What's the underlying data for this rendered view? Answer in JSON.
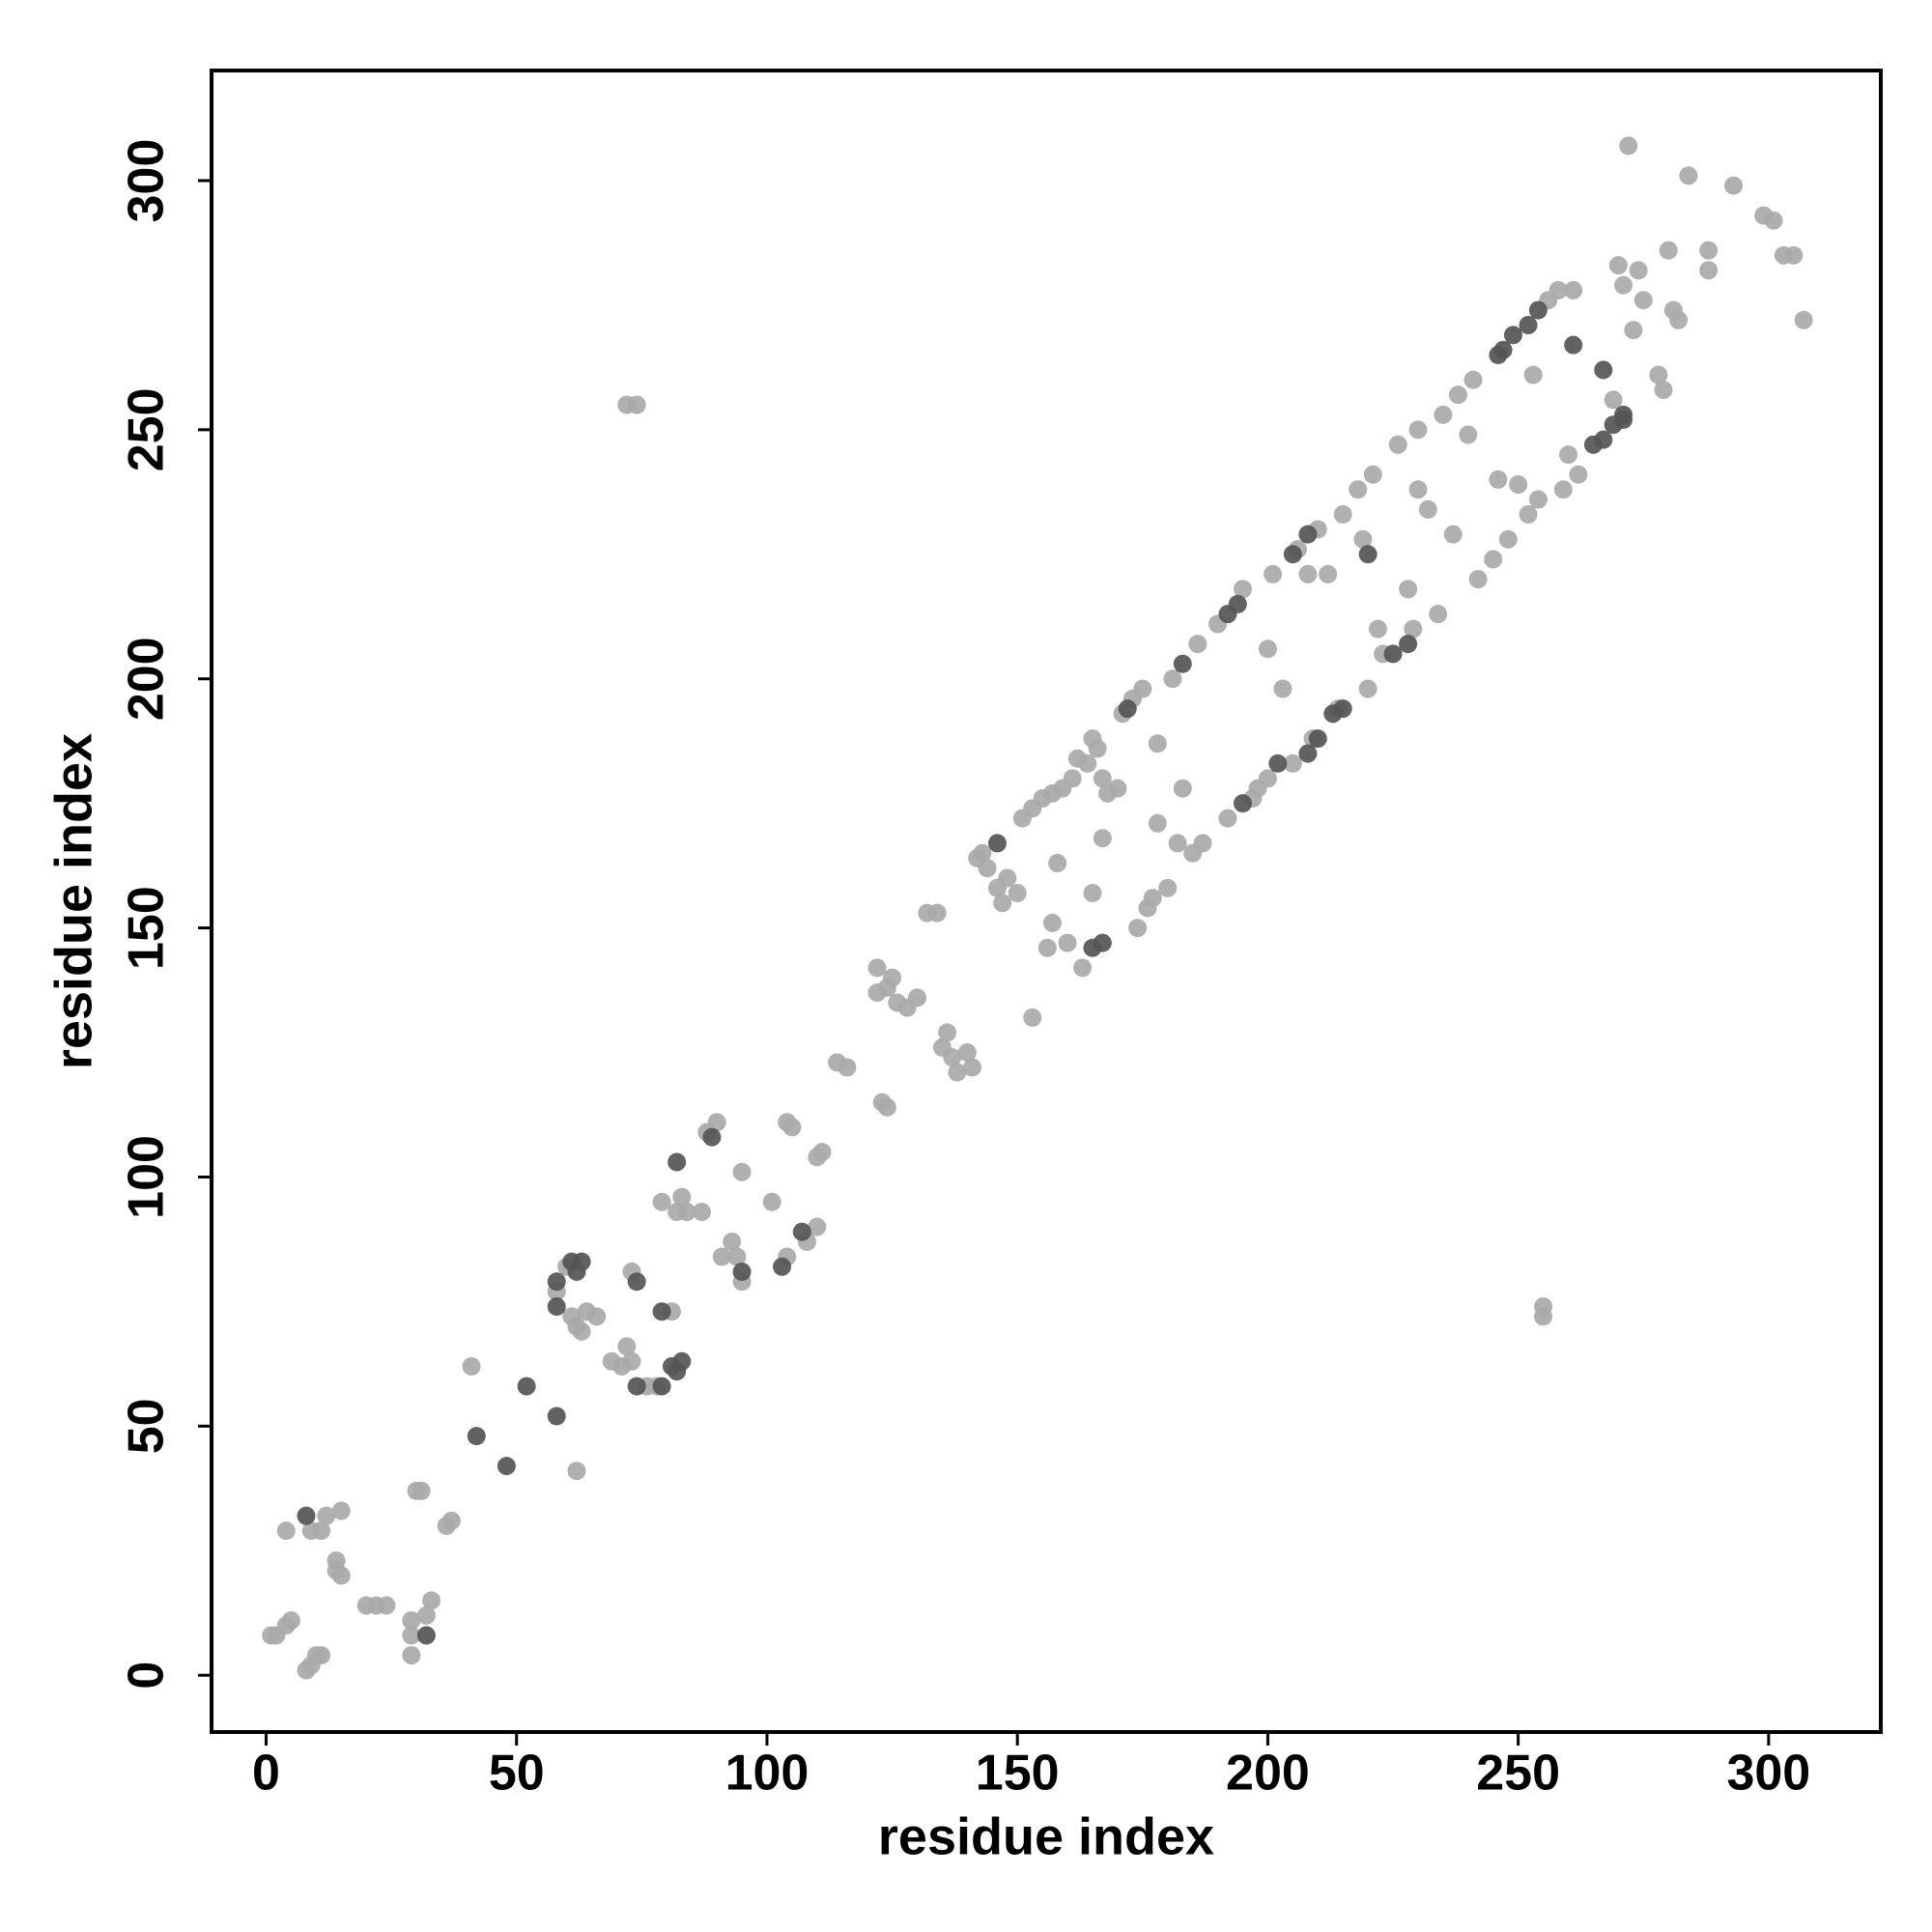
{
  "chart_data": {
    "type": "scatter",
    "xlabel": "residue index",
    "ylabel": "residue index",
    "xlim": [
      -10.9,
      322.4
    ],
    "ylim": [
      -11.4,
      322.1
    ],
    "xticks": [
      0,
      50,
      100,
      150,
      200,
      250,
      300
    ],
    "yticks": [
      0,
      50,
      100,
      150,
      200,
      250,
      300
    ],
    "series": [
      {
        "color": "#a9a9a9",
        "x": [
          1,
          2,
          4,
          5,
          4,
          8,
          9,
          10,
          11,
          9,
          11,
          12,
          15,
          14,
          14,
          15,
          20,
          22,
          24,
          29,
          29,
          29,
          30,
          31,
          32,
          33,
          36,
          37,
          41,
          62,
          58,
          60,
          61,
          62,
          63,
          64,
          66,
          69,
          71,
          72,
          73,
          73,
          76,
          78,
          81,
          79,
          82,
          83,
          84,
          87,
          88,
          90,
          91,
          93,
          94,
          95,
          95,
          101,
          104,
          104,
          105,
          108,
          110,
          110,
          111,
          114,
          116,
          122,
          122,
          123,
          124,
          124,
          125,
          126,
          128,
          130,
          132,
          134,
          135,
          136,
          137,
          138,
          140,
          141,
          142,
          143,
          144,
          146,
          147,
          148,
          150,
          151,
          153,
          153,
          155,
          156,
          157,
          157,
          158,
          159,
          160,
          161,
          162,
          163,
          164,
          165,
          166,
          167,
          168,
          170,
          171,
          173,
          174,
          175,
          176,
          177,
          178,
          178,
          180,
          181,
          182,
          183,
          185,
          186,
          187,
          190,
          192,
          195,
          197,
          198,
          200,
          200,
          201,
          203,
          205,
          206,
          208,
          209,
          210,
          212,
          214,
          215,
          218,
          219,
          220,
          221,
          222,
          223,
          226,
          228,
          229,
          230,
          230,
          232,
          235,
          234,
          238,
          237,
          240,
          241,
          242,
          245,
          246,
          248,
          250,
          252,
          253,
          254,
          256,
          258,
          259,
          260,
          261,
          262,
          269,
          270,
          271,
          273,
          274,
          275,
          278,
          279,
          280,
          281,
          282,
          284,
          288,
          288,
          293,
          299,
          301,
          303,
          305,
          307,
          272,
          72,
          74,
          255,
          255,
          165,
          167
        ],
        "y": [
          8,
          8,
          10,
          11,
          29,
          1,
          2,
          4,
          4,
          29,
          29,
          32,
          33,
          23,
          21,
          20,
          14,
          14,
          14,
          4,
          8,
          11,
          37,
          37,
          12,
          15,
          30,
          31,
          62,
          41,
          77,
          82,
          72,
          70,
          69,
          73,
          72,
          63,
          62,
          66,
          63,
          81,
          58,
          58,
          73,
          95,
          93,
          96,
          93,
          93,
          109,
          111,
          84,
          87,
          84,
          79,
          101,
          95,
          84,
          111,
          110,
          87,
          90,
          104,
          105,
          123,
          122,
          137,
          142,
          115,
          138,
          114,
          140,
          135,
          134,
          136,
          153,
          153,
          126,
          129,
          124,
          121,
          125,
          122,
          164,
          165,
          162,
          158,
          155,
          160,
          157,
          172,
          132,
          174,
          176,
          146,
          151,
          177,
          163,
          178,
          147,
          180,
          184,
          142,
          183,
          157,
          186,
          180,
          177,
          178,
          193,
          196,
          150,
          198,
          154,
          156,
          187,
          171,
          158,
          200,
          167,
          178,
          165,
          207,
          167,
          211,
          172,
          218,
          176,
          178,
          206,
          180,
          221,
          198,
          183,
          226,
          221,
          188,
          230,
          221,
          194,
          233,
          238,
          228,
          198,
          241,
          210,
          205,
          247,
          218,
          210,
          250,
          238,
          234,
          253,
          213,
          257,
          229,
          249,
          260,
          220,
          224,
          240,
          228,
          239,
          233,
          261,
          236,
          276,
          278,
          238,
          245,
          278,
          241,
          256,
          283,
          279,
          270,
          282,
          276,
          261,
          258,
          286,
          274,
          272,
          301,
          282,
          286,
          299,
          293,
          292,
          285,
          285,
          272,
          307,
          255,
          255,
          72,
          74,
          188,
          168
        ]
      },
      {
        "color": "#555555",
        "x": [
          8,
          32,
          42,
          48,
          52,
          58,
          58,
          58,
          61,
          62,
          63,
          74,
          74,
          79,
          79,
          81,
          82,
          83,
          82,
          89,
          95,
          103,
          107,
          146,
          165,
          167,
          172,
          183,
          192,
          194,
          195,
          202,
          205,
          208,
          208,
          213,
          215,
          220,
          225,
          228,
          247,
          249,
          252,
          254,
          261,
          265,
          267,
          269,
          271,
          267,
          271,
          246,
          210
        ],
        "y": [
          32,
          8,
          48,
          42,
          58,
          52,
          79,
          74,
          83,
          81,
          83,
          79,
          58,
          58,
          73,
          62,
          61,
          63,
          103,
          108,
          81,
          82,
          89,
          167,
          146,
          147,
          194,
          203,
          213,
          215,
          175,
          183,
          225,
          229,
          185,
          193,
          194,
          225,
          205,
          207,
          266,
          269,
          271,
          274,
          267,
          247,
          248,
          251,
          252,
          262,
          253,
          265,
          188
        ]
      }
    ]
  }
}
